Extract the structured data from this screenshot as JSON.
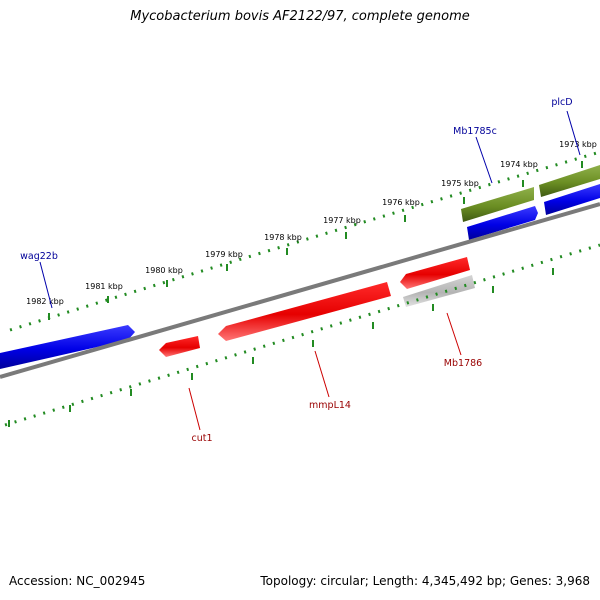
{
  "title": "Mycobacterium bovis AF2122/97, complete genome",
  "footer": {
    "accession": "Accession: NC_002945",
    "summary": "Topology: circular; Length: 4,345,492 bp; Genes: 3,968"
  },
  "colors": {
    "forward_gene": "#0000e6",
    "reverse_gene": "#e60000",
    "rna_gene": "#6b8e23",
    "pseudo_gene": "#b4b4b4",
    "backbone": "#7a7a7a",
    "ticks": "#228b22",
    "forward_label": "#000099",
    "reverse_label": "#990000"
  },
  "ruler_labels": [
    "1973 kbp",
    "1974 kbp",
    "1975 kbp",
    "1976 kbp",
    "1977 kbp",
    "1978 kbp",
    "1979 kbp",
    "1980 kbp",
    "1981 kbp",
    "1982 kbp"
  ],
  "gene_labels": {
    "plcD": "plcD",
    "mb1785c": "Mb1785c",
    "wag22b": "wag22b",
    "mb1786": "Mb1786",
    "mmpl14": "mmpL14",
    "cut1": "cut1"
  }
}
